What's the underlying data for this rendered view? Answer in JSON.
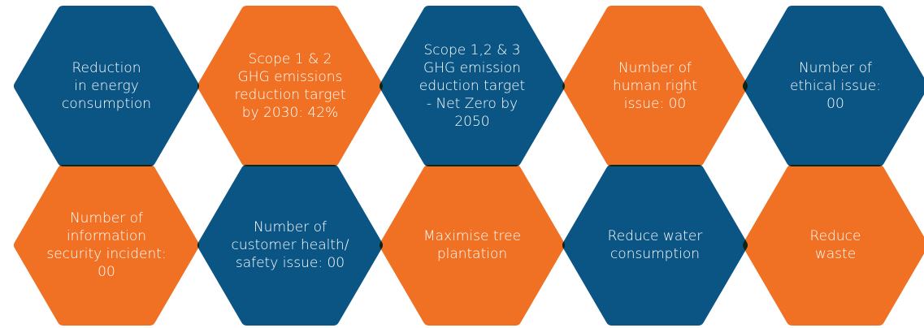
{
  "nodes": [
    {
      "lines": [
        "Reduction",
        "in energy",
        "consumption"
      ]
    },
    {
      "lines": [
        "Scope 1 & 2",
        "GHG emissions",
        "reduction target",
        "by 2030: 42%"
      ]
    },
    {
      "lines": [
        "Scope 1,2 & 3",
        "GHG emission",
        "eduction target",
        "- Net Zero by",
        "2050"
      ]
    },
    {
      "lines": [
        "Number of",
        "human right",
        "issue: 00"
      ]
    },
    {
      "lines": [
        "Number of",
        "ethical issue:",
        "00"
      ]
    },
    {
      "lines": [
        "Number of",
        "information",
        "security incident:",
        "00"
      ]
    },
    {
      "lines": [
        "Number of",
        "customer health/",
        "safety issue: 00"
      ]
    },
    {
      "lines": [
        "Maximise tree",
        "plantation"
      ]
    },
    {
      "lines": [
        "Reduce water",
        "consumption"
      ]
    },
    {
      "lines": [
        "Reduce",
        "waste"
      ]
    }
  ]
}
